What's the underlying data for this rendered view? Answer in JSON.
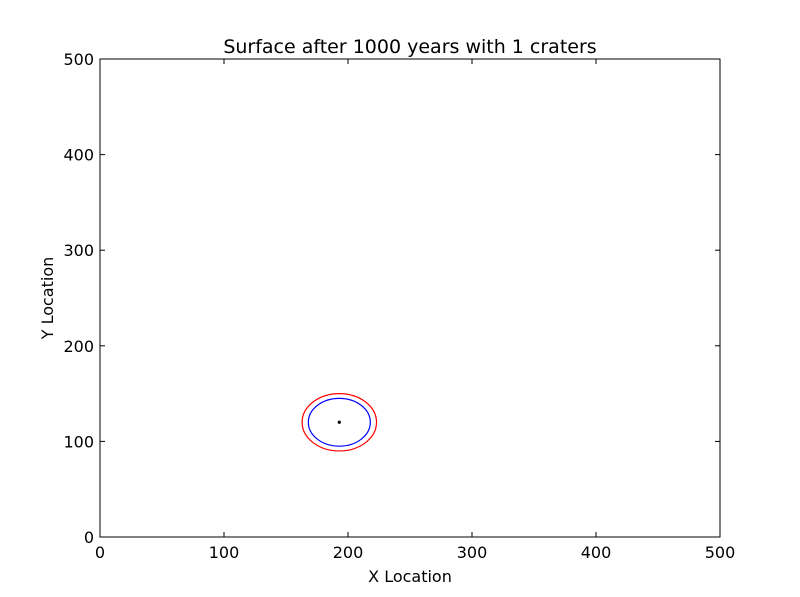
{
  "chart_data": {
    "type": "scatter",
    "title": "Surface after 1000 years with 1 craters",
    "xlabel": "X Location",
    "ylabel": "Y Location",
    "xlim": [
      0,
      500
    ],
    "ylim": [
      0,
      500
    ],
    "xticks": [
      "0",
      "100",
      "200",
      "300",
      "400",
      "500"
    ],
    "yticks": [
      "0",
      "100",
      "200",
      "300",
      "400",
      "500"
    ],
    "grid": false,
    "craters": [
      {
        "center": [
          193,
          120
        ],
        "inner_radius": 25,
        "outer_radius": 30,
        "inner_color": "#0000ff",
        "outer_color": "#ff0000",
        "center_color": "#000000"
      }
    ]
  }
}
